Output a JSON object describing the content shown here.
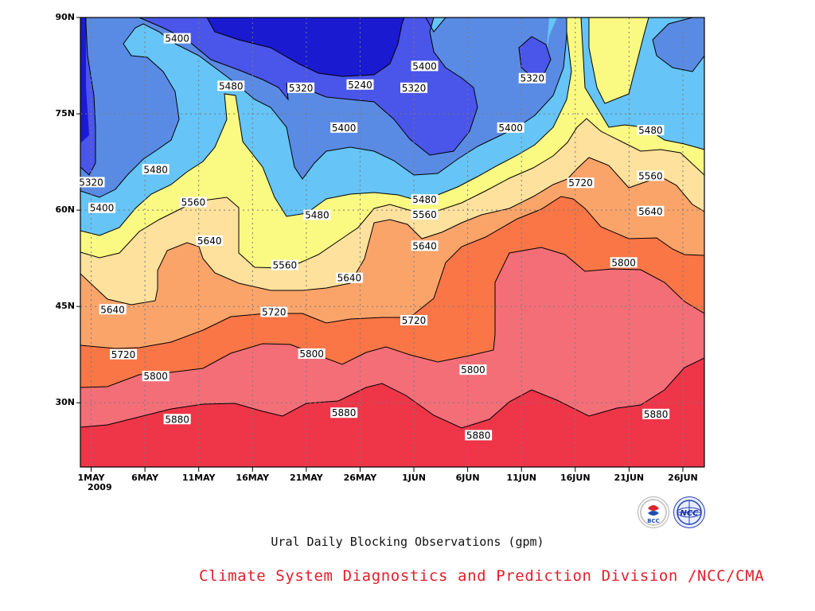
{
  "chart_data": {
    "type": "contour",
    "title": "Ural Daily Blocking Observations (gpm)",
    "x_ticks": [
      "1MAY",
      "6MAY",
      "11MAY",
      "16MAY",
      "21MAY",
      "26MAY",
      "1JUN",
      "6JUN",
      "11JUN",
      "16JUN",
      "21JUN",
      "26JUN"
    ],
    "x_year": "2009",
    "y_ticks": [
      "30N",
      "45N",
      "60N",
      "75N",
      "90N"
    ],
    "xlim_days": [
      -1,
      57
    ],
    "ylim_lat": [
      20,
      90
    ],
    "grid": "dotted",
    "contour_levels": [
      5240,
      5320,
      5400,
      5480,
      5560,
      5640,
      5720,
      5800,
      5880
    ],
    "color_legend": {
      "below_5240": "#1a1ad0",
      "5240-5320": "#4a55ea",
      "5320-5400": "#5a8be4",
      "5400-5480": "#66c4f6",
      "5480-5560": "#fafa82",
      "5560-5640": "#fde19c",
      "5640-5720": "#fba46a",
      "5720-5800": "#fa7646",
      "5800-5880": "#f46e78",
      "above_5880": "#ee3648"
    },
    "contour_labels": [
      {
        "text": "5400",
        "day": 8,
        "lat": 86.7
      },
      {
        "text": "5480",
        "day": 13,
        "lat": 79.3
      },
      {
        "text": "5320",
        "day": 19.5,
        "lat": 79.0
      },
      {
        "text": "5240",
        "day": 25,
        "lat": 79.5
      },
      {
        "text": "5320",
        "day": 30,
        "lat": 79.0
      },
      {
        "text": "5400",
        "day": 31,
        "lat": 82.4
      },
      {
        "text": "5320",
        "day": 41,
        "lat": 80.5
      },
      {
        "text": "5400",
        "day": 23.5,
        "lat": 72.8
      },
      {
        "text": "5400",
        "day": 39,
        "lat": 72.8
      },
      {
        "text": "5480",
        "day": 52,
        "lat": 72.4
      },
      {
        "text": "5320",
        "day": 0,
        "lat": 64.3
      },
      {
        "text": "5480",
        "day": 6,
        "lat": 66.3
      },
      {
        "text": "5560",
        "day": 52,
        "lat": 65.3
      },
      {
        "text": "5720",
        "day": 45.5,
        "lat": 64.2
      },
      {
        "text": "5400",
        "day": 1,
        "lat": 60.3
      },
      {
        "text": "5560",
        "day": 9.5,
        "lat": 61.2
      },
      {
        "text": "5480",
        "day": 21,
        "lat": 59.2
      },
      {
        "text": "5480",
        "day": 31,
        "lat": 61.6
      },
      {
        "text": "5560",
        "day": 31,
        "lat": 59.3
      },
      {
        "text": "5640",
        "day": 52,
        "lat": 59.8
      },
      {
        "text": "5640",
        "day": 11,
        "lat": 55.2
      },
      {
        "text": "5640",
        "day": 31,
        "lat": 54.4
      },
      {
        "text": "5560",
        "day": 18,
        "lat": 51.4
      },
      {
        "text": "5640",
        "day": 24,
        "lat": 49.4
      },
      {
        "text": "5800",
        "day": 49.5,
        "lat": 51.8
      },
      {
        "text": "5640",
        "day": 2,
        "lat": 44.5
      },
      {
        "text": "5720",
        "day": 17,
        "lat": 44.1
      },
      {
        "text": "5720",
        "day": 30,
        "lat": 42.8
      },
      {
        "text": "5720",
        "day": 3,
        "lat": 37.5
      },
      {
        "text": "5800",
        "day": 20.5,
        "lat": 37.6
      },
      {
        "text": "5800",
        "day": 35.5,
        "lat": 35.1
      },
      {
        "text": "5800",
        "day": 6,
        "lat": 34.1
      },
      {
        "text": "5880",
        "day": 8,
        "lat": 27.4
      },
      {
        "text": "5880",
        "day": 23.5,
        "lat": 28.4
      },
      {
        "text": "5880",
        "day": 36,
        "lat": 24.9
      },
      {
        "text": "5880",
        "day": 52.5,
        "lat": 28.2
      }
    ]
  },
  "footer": {
    "title": "Ural Daily Blocking Observations (gpm)",
    "credit": "Climate System Diagnostics and Prediction Division /NCC/CMA",
    "logo_left": "bcc-logo",
    "logo_right": "ncc-logo"
  }
}
